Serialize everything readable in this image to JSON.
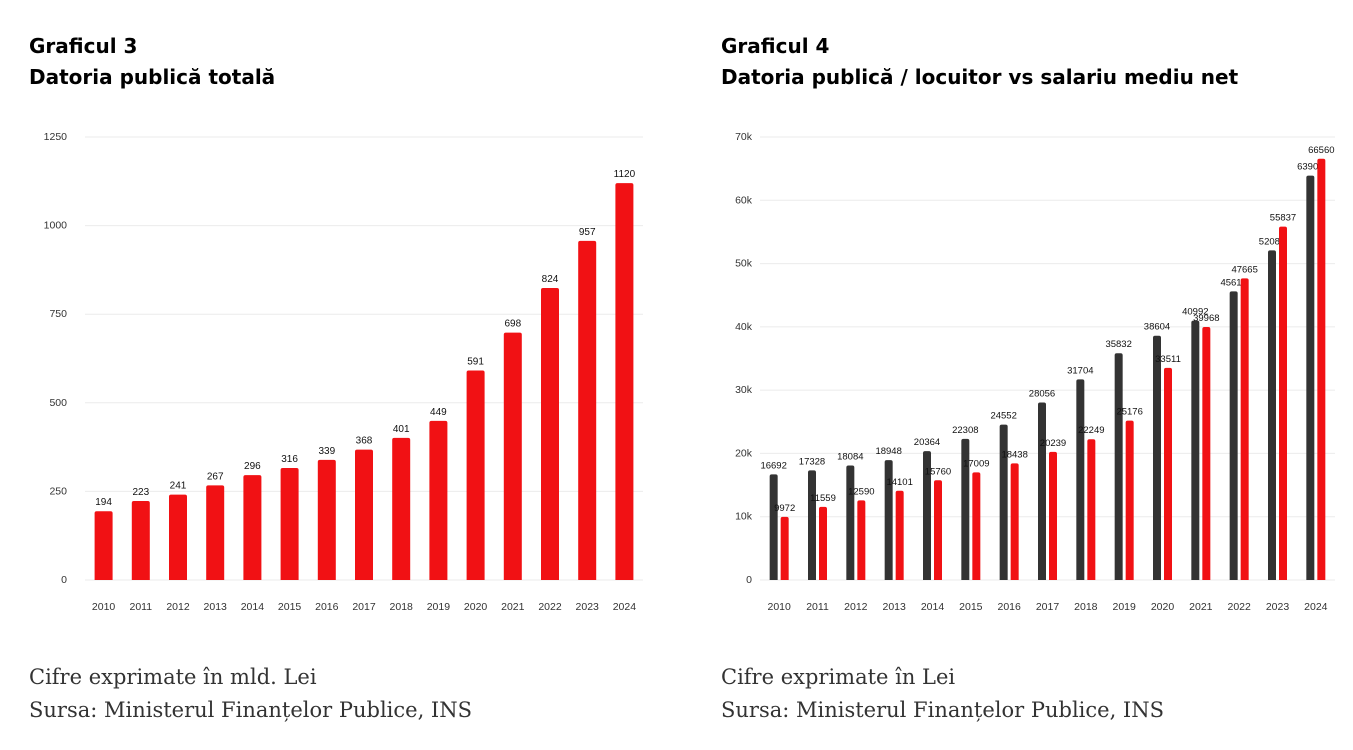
{
  "colors": {
    "red": "#f11114",
    "dark": "#333333",
    "grid": "#ebebeb",
    "axis_text": "#333333"
  },
  "left": {
    "heading": "Graficul 3",
    "subheading": "Datoria publică totală",
    "note1": "Cifre exprimate în mld. Lei",
    "note2": "Sursa: Ministerul Finanțelor Publice, INS"
  },
  "right": {
    "heading": "Graficul 4",
    "subheading": "Datoria publică / locuitor vs salariu mediu net",
    "note1": "Cifre exprimate în Lei",
    "note2": "Sursa: Ministerul Finanțelor Publice, INS"
  },
  "chart_data": [
    {
      "type": "bar",
      "categories": [
        "2010",
        "2011",
        "2012",
        "2013",
        "2014",
        "2015",
        "2016",
        "2017",
        "2018",
        "2019",
        "2020",
        "2021",
        "2022",
        "2023",
        "2024"
      ],
      "series": [
        {
          "values": [
            194,
            223,
            241,
            267,
            296,
            316,
            339,
            368,
            401,
            449,
            591,
            698,
            824,
            957,
            1120
          ],
          "color": "#f11114"
        }
      ],
      "ylim": [
        0,
        1250
      ],
      "yticks": [
        0,
        250,
        500,
        750,
        1000,
        1250
      ],
      "ytick_labels": [
        "0",
        "250",
        "500",
        "750",
        "1000",
        "1250"
      ],
      "grid": true,
      "data_labels": true
    },
    {
      "type": "bar",
      "categories": [
        "2010",
        "2011",
        "2012",
        "2013",
        "2014",
        "2015",
        "2016",
        "2017",
        "2018",
        "2019",
        "2020",
        "2021",
        "2022",
        "2023",
        "2024"
      ],
      "series": [
        {
          "values": [
            16692,
            17328,
            18084,
            18948,
            20364,
            22308,
            24552,
            28056,
            31704,
            35832,
            38604,
            40992,
            45612,
            52080,
            63900
          ],
          "color": "#333333"
        },
        {
          "values": [
            9972,
            11559,
            12590,
            14101,
            15760,
            17009,
            18438,
            20239,
            22249,
            25176,
            33511,
            39968,
            47665,
            55837,
            66560
          ],
          "color": "#f11114"
        }
      ],
      "ylim": [
        0,
        70000
      ],
      "yticks": [
        0,
        10000,
        20000,
        30000,
        40000,
        50000,
        60000,
        70000
      ],
      "ytick_labels": [
        "0",
        "10k",
        "20k",
        "30k",
        "40k",
        "50k",
        "60k",
        "70k"
      ],
      "grid": true,
      "data_labels": true
    }
  ]
}
